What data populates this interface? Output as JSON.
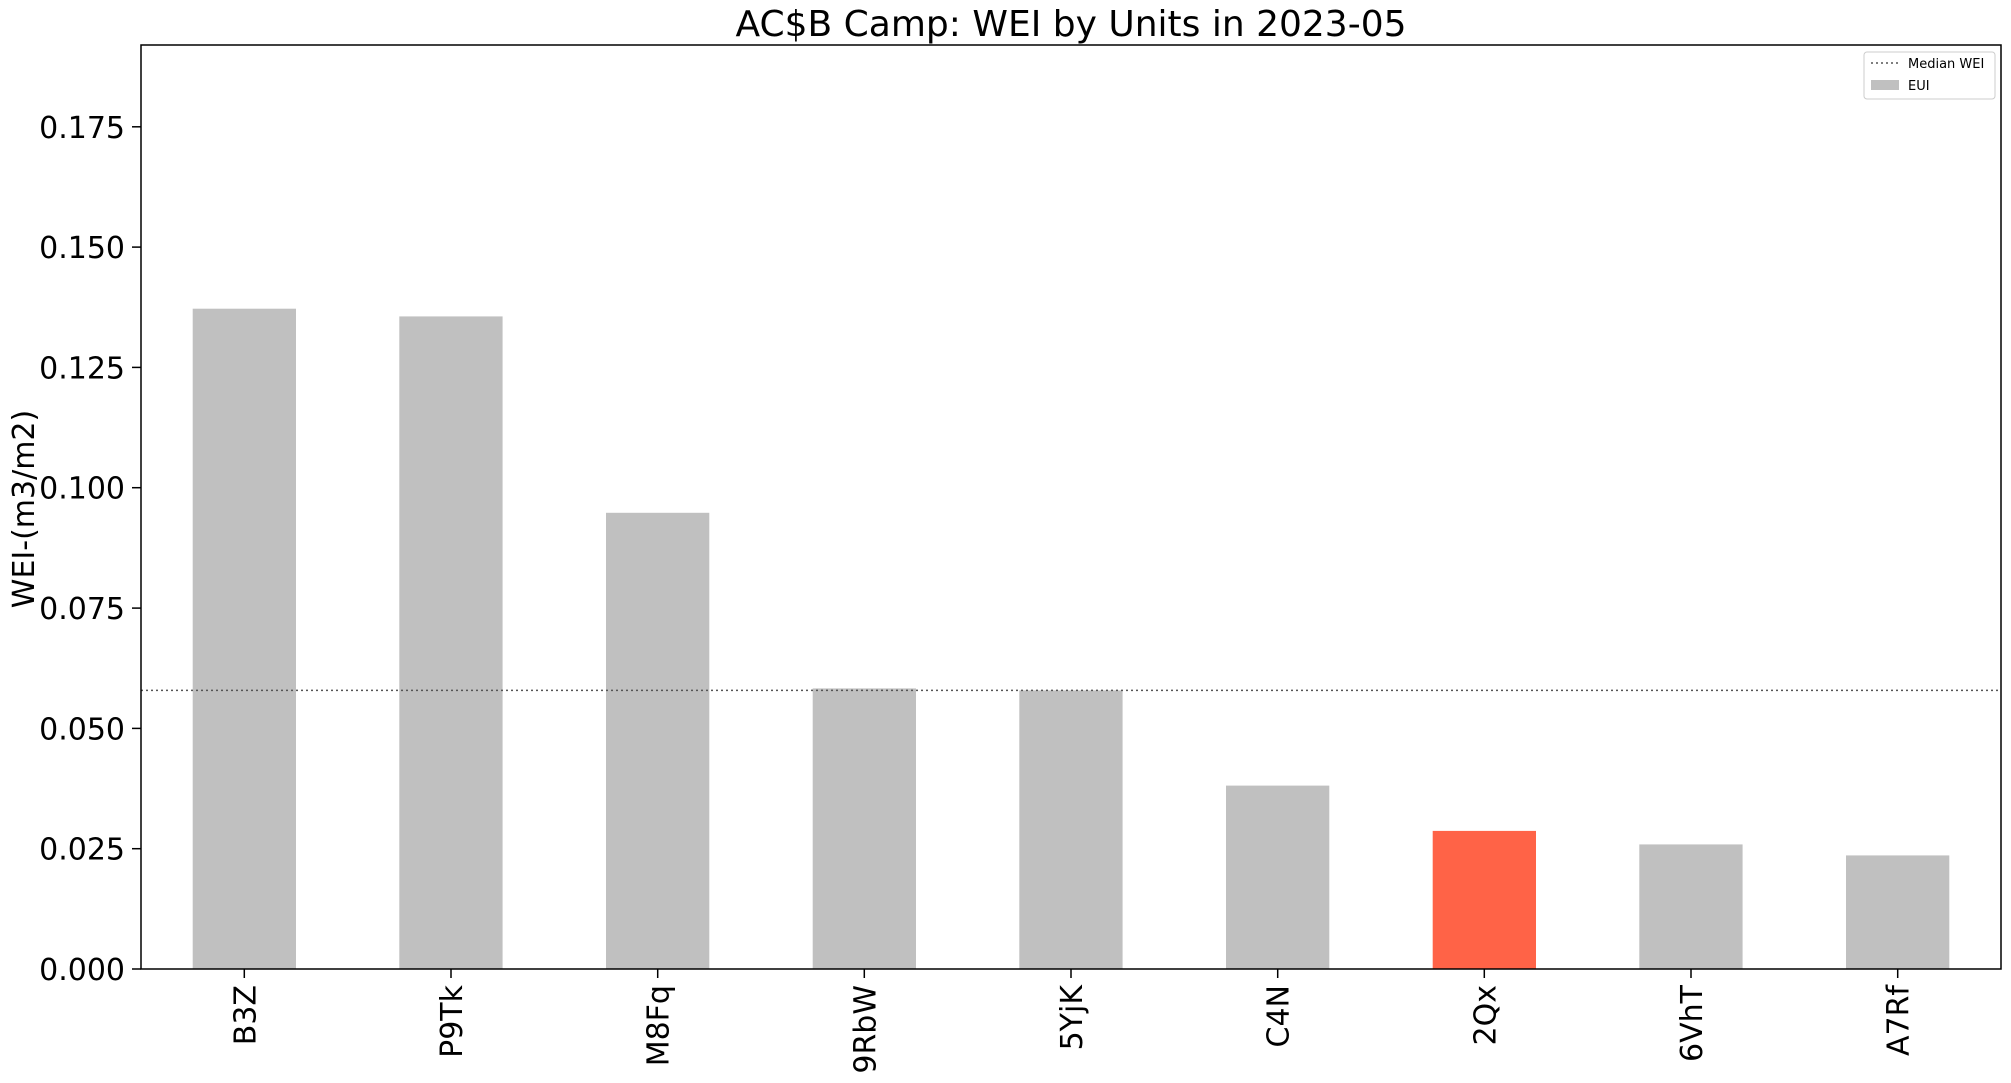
{
  "chart_data": {
    "type": "bar",
    "title": "AC$B Camp: WEI by Units in 2023-05",
    "xlabel": "",
    "ylabel": "WEI-(m3/m2)",
    "categories": [
      "B3Z",
      "P9Tk",
      "M8Fq",
      "9RbW",
      "5YjK",
      "C4N",
      "2Qx",
      "6VhT",
      "A7Rf"
    ],
    "values": [
      0.1372,
      0.1356,
      0.0948,
      0.0583,
      0.0579,
      0.0381,
      0.0287,
      0.0259,
      0.0236
    ],
    "highlight_category": "2Qx",
    "ylim": [
      0,
      0.192
    ],
    "yticks": [
      0.0,
      0.025,
      0.05,
      0.075,
      0.1,
      0.125,
      0.15,
      0.175
    ],
    "ytick_labels": [
      "0.000",
      "0.025",
      "0.050",
      "0.075",
      "0.100",
      "0.125",
      "0.150",
      "0.175"
    ],
    "median_wei": 0.0579,
    "grid": false,
    "legend": {
      "placement": "top-right",
      "entries": [
        {
          "label": "Median WEI",
          "kind": "dotted-line"
        },
        {
          "label": "EUI",
          "kind": "bar"
        }
      ]
    },
    "colors": {
      "bar": "#c0c0c0",
      "highlight": "#ff6347",
      "median_line": "#555555",
      "axes": "#000000"
    }
  }
}
